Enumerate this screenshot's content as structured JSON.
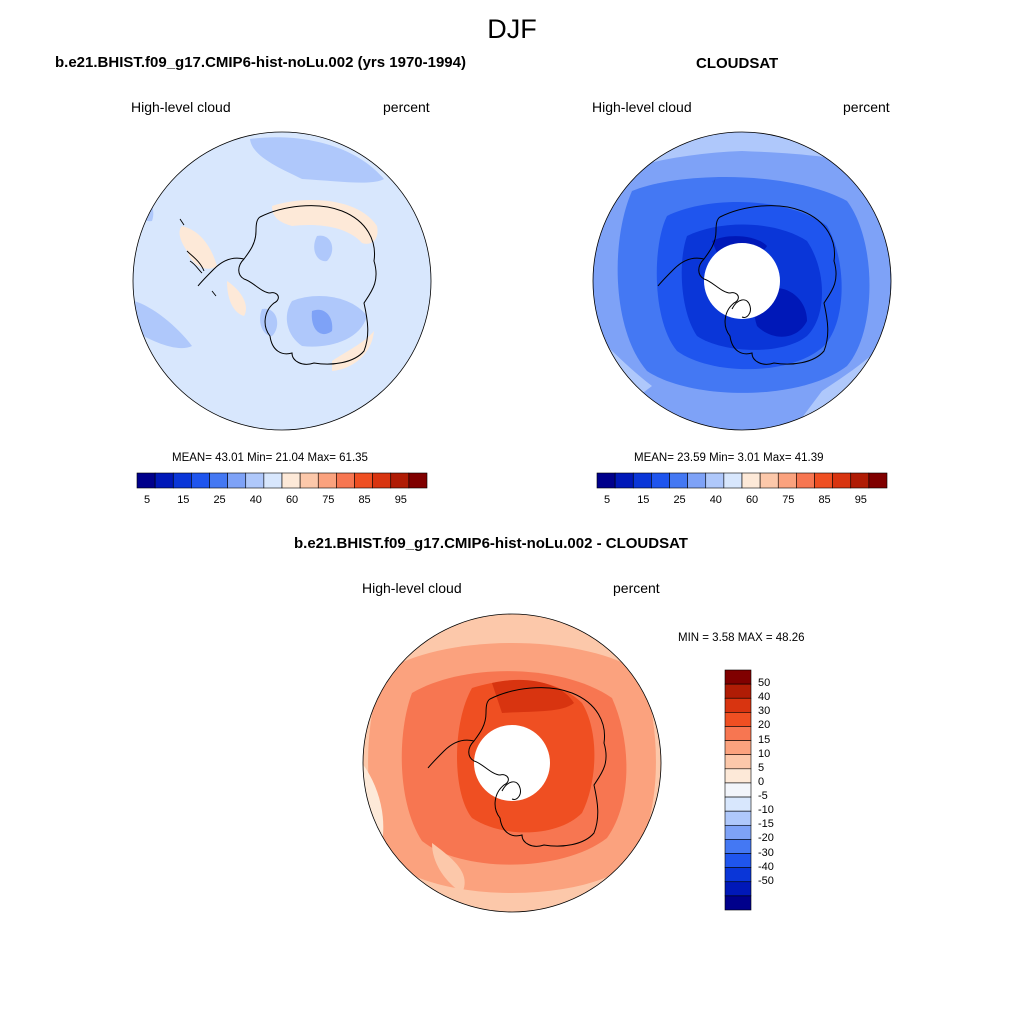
{
  "figure": {
    "title": "DJF"
  },
  "colors": {
    "levels": [
      "#00008b",
      "#0018b8",
      "#0a36d8",
      "#1f55ee",
      "#4478f3",
      "#7ea2f7",
      "#afc8fb",
      "#d8e7fd",
      "#fde9d8",
      "#fcc8aa",
      "#fba27e",
      "#f77651",
      "#ef4f22",
      "#d83410",
      "#b01c05",
      "#800000"
    ],
    "diff_levels": [
      "#00008b",
      "#0018b8",
      "#0a36d8",
      "#1f55ee",
      "#4478f3",
      "#7ea2f7",
      "#afc8fb",
      "#d8e7fd",
      "#f2f5fb",
      "#fde9d8",
      "#fcc8aa",
      "#fba27e",
      "#f77651",
      "#ef4f22",
      "#d83410",
      "#b01c05",
      "#800000"
    ],
    "coast": "#000000"
  },
  "panels": {
    "model": {
      "title": "b.e21.BHIST.f09_g17.CMIP6-hist-noLu.002 (yrs 1970-1994)",
      "left_label": "High-level cloud",
      "right_label": "percent",
      "stats": "MEAN=  43.01  Min=  21.04  Max=  61.35",
      "colorbar_ticks": [
        "5",
        "15",
        "25",
        "40",
        "60",
        "75",
        "85",
        "95"
      ]
    },
    "obs": {
      "title": "CLOUDSAT",
      "left_label": "High-level cloud",
      "right_label": "percent",
      "stats": "MEAN=  23.59  Min=   3.01  Max=  41.39",
      "colorbar_ticks": [
        "5",
        "15",
        "25",
        "40",
        "60",
        "75",
        "85",
        "95"
      ]
    },
    "diff": {
      "title": "b.e21.BHIST.f09_g17.CMIP6-hist-noLu.002 - CLOUDSAT",
      "left_label": "High-level cloud",
      "right_label": "percent",
      "stats": "MIN =   3.58 MAX =  48.26",
      "colorbar_ticks": [
        "50",
        "40",
        "30",
        "20",
        "15",
        "10",
        "5",
        "0",
        "-5",
        "-10",
        "-15",
        "-20",
        "-30",
        "-40",
        "-50"
      ]
    }
  }
}
